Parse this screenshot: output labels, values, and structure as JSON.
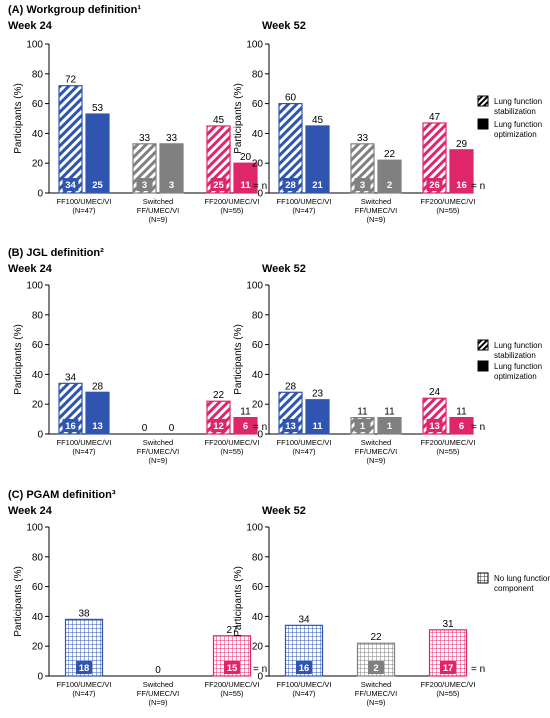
{
  "colors": {
    "blue": "#2f55b0",
    "gray": "#808080",
    "pink": "#e0266b"
  },
  "n_label": "= n",
  "legend": {
    "stabilization": "Lung function stabilization",
    "optimization": "Lung function optimization",
    "no_component": "No lung function component"
  },
  "chart_data": [
    {
      "type": "bar",
      "panel_title": "(A) Workgroup definition¹",
      "title": "Week 24",
      "ylabel": "Participants (%)",
      "ylim": [
        0,
        100
      ],
      "yticks": [
        0,
        20,
        40,
        60,
        80,
        100
      ],
      "categories": [
        "FF100/UMEC/VI\n(N=47)",
        "Switched\nFF/UMEC/VI\n(N=9)",
        "FF200/UMEC/VI\n(N=55)"
      ],
      "series": [
        {
          "name": "Lung function stabilization",
          "pattern": "hatch",
          "values": [
            72,
            33,
            45
          ],
          "n": [
            34,
            3,
            25
          ]
        },
        {
          "name": "Lung function optimization",
          "pattern": "solid",
          "values": [
            53,
            33,
            20
          ],
          "n": [
            25,
            3,
            11
          ]
        }
      ]
    },
    {
      "type": "bar",
      "title": "Week 52",
      "ylabel": "Participants (%)",
      "ylim": [
        0,
        100
      ],
      "yticks": [
        0,
        20,
        40,
        60,
        80,
        100
      ],
      "categories": [
        "FF100/UMEC/VI\n(N=47)",
        "Switched\nFF/UMEC/VI\n(N=9)",
        "FF200/UMEC/VI\n(N=55)"
      ],
      "series": [
        {
          "name": "Lung function stabilization",
          "pattern": "hatch",
          "values": [
            60,
            33,
            47
          ],
          "n": [
            28,
            3,
            26
          ]
        },
        {
          "name": "Lung function optimization",
          "pattern": "solid",
          "values": [
            45,
            22,
            29
          ],
          "n": [
            21,
            2,
            16
          ]
        }
      ]
    },
    {
      "type": "bar",
      "panel_title": "(B) JGL definition²",
      "title": "Week 24",
      "ylabel": "Participants (%)",
      "ylim": [
        0,
        100
      ],
      "yticks": [
        0,
        20,
        40,
        60,
        80,
        100
      ],
      "categories": [
        "FF100/UMEC/VI\n(N=47)",
        "Switched\nFF/UMEC/VI\n(N=9)",
        "FF200/UMEC/VI\n(N=55)"
      ],
      "series": [
        {
          "name": "Lung function stabilization",
          "pattern": "hatch",
          "values": [
            34,
            0,
            22
          ],
          "n": [
            16,
            null,
            12
          ]
        },
        {
          "name": "Lung function optimization",
          "pattern": "solid",
          "values": [
            28,
            0,
            11
          ],
          "n": [
            13,
            null,
            6
          ]
        }
      ]
    },
    {
      "type": "bar",
      "title": "Week 52",
      "ylabel": "Participants (%)",
      "ylim": [
        0,
        100
      ],
      "yticks": [
        0,
        20,
        40,
        60,
        80,
        100
      ],
      "categories": [
        "FF100/UMEC/VI\n(N=47)",
        "Switched\nFF/UMEC/VI\n(N=9)",
        "FF200/UMEC/VI\n(N=55)"
      ],
      "series": [
        {
          "name": "Lung function stabilization",
          "pattern": "hatch",
          "values": [
            28,
            11,
            24
          ],
          "n": [
            13,
            1,
            13
          ]
        },
        {
          "name": "Lung function optimization",
          "pattern": "solid",
          "values": [
            23,
            11,
            11
          ],
          "n": [
            11,
            1,
            6
          ]
        }
      ]
    },
    {
      "type": "bar",
      "panel_title": "(C) PGAM definition³",
      "title": "Week 24",
      "ylabel": "Participants (%)",
      "ylim": [
        0,
        100
      ],
      "yticks": [
        0,
        20,
        40,
        60,
        80,
        100
      ],
      "categories": [
        "FF100/UMEC/VI\n(N=47)",
        "Switched\nFF/UMEC/VI\n(N=9)",
        "FF200/UMEC/VI\n(N=55)"
      ],
      "series": [
        {
          "name": "No lung function component",
          "pattern": "grid",
          "values": [
            38,
            0,
            27
          ],
          "n": [
            18,
            null,
            15
          ]
        }
      ]
    },
    {
      "type": "bar",
      "title": "Week 52",
      "ylabel": "Participants (%)",
      "ylim": [
        0,
        100
      ],
      "yticks": [
        0,
        20,
        40,
        60,
        80,
        100
      ],
      "categories": [
        "FF100/UMEC/VI\n(N=47)",
        "Switched\nFF/UMEC/VI\n(N=9)",
        "FF200/UMEC/VI\n(N=55)"
      ],
      "series": [
        {
          "name": "No lung function component",
          "pattern": "grid",
          "values": [
            34,
            22,
            31
          ],
          "n": [
            16,
            2,
            17
          ]
        }
      ]
    }
  ]
}
